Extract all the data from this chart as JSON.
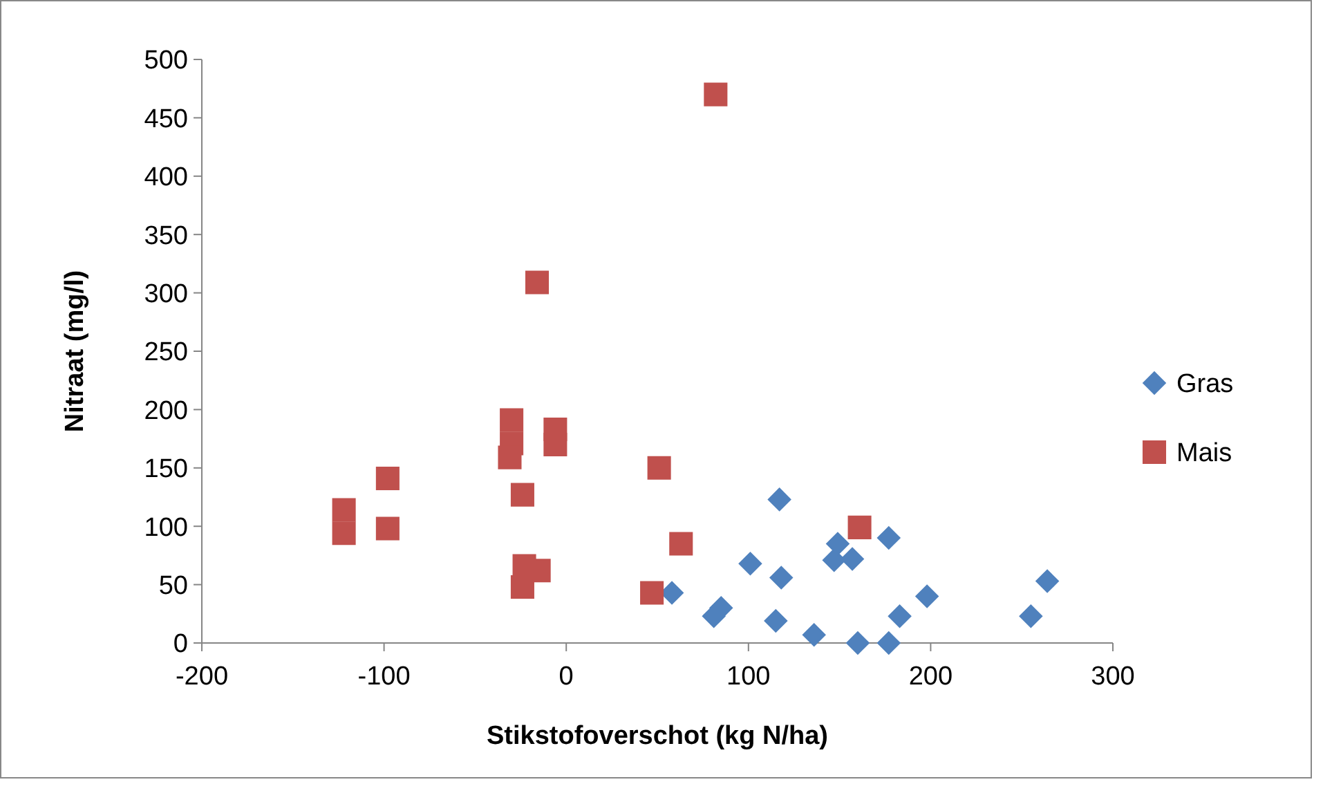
{
  "chart_data": {
    "type": "scatter",
    "xlabel": "Stikstofoverschot (kg N/ha)",
    "ylabel": "Nitraat (mg/l)",
    "xlim": [
      -200,
      300
    ],
    "xticks": [
      -200,
      -100,
      0,
      100,
      200,
      300
    ],
    "ylim": [
      0,
      500
    ],
    "yticks": [
      0,
      50,
      100,
      150,
      200,
      250,
      300,
      350,
      400,
      450,
      500
    ],
    "grid": false,
    "legend": "right",
    "series": [
      {
        "name": "Gras",
        "color": "#4f81bd",
        "marker": "diamond",
        "x": [
          117,
          58,
          81,
          85,
          101,
          118,
          115,
          136,
          147,
          149,
          157,
          160,
          177,
          177,
          183,
          198,
          255,
          264
        ],
        "values": [
          123,
          43,
          23,
          30,
          68,
          56,
          19,
          7,
          71,
          85,
          72,
          0,
          0,
          90,
          23,
          40,
          23,
          53
        ]
      },
      {
        "name": "Mais",
        "color": "#c0504d",
        "marker": "square",
        "x": [
          82,
          -16,
          -30,
          -30,
          -31,
          -6,
          -6,
          -98,
          -98,
          -122,
          -122,
          -24,
          51,
          63,
          47,
          -23,
          -15,
          -24,
          161
        ],
        "values": [
          470,
          309,
          191,
          171,
          159,
          183,
          170,
          141,
          98,
          114,
          94,
          127,
          150,
          85,
          43,
          66,
          62,
          48,
          99
        ]
      }
    ]
  }
}
